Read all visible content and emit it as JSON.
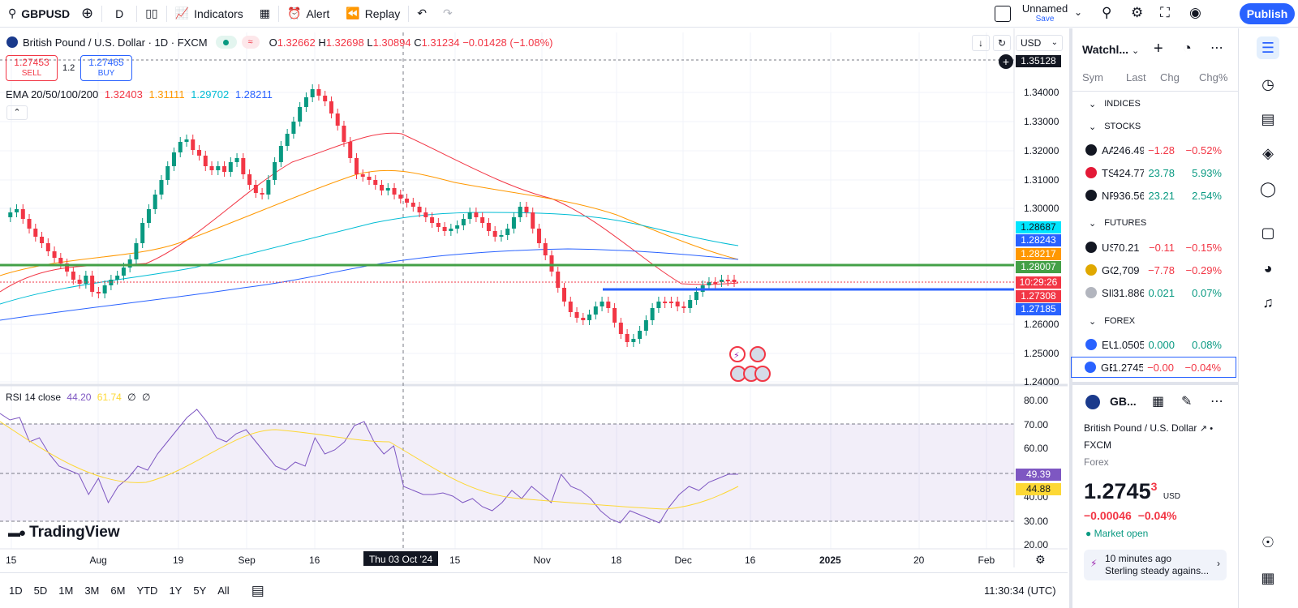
{
  "toolbar": {
    "symbol": "GBPUSD",
    "interval": "D",
    "indicators": "Indicators",
    "alert": "Alert",
    "replay": "Replay",
    "layout_name": "Unnamed",
    "save": "Save",
    "publish": "Publish"
  },
  "legend": {
    "title": "British Pound / U.S. Dollar · 1D · FXCM",
    "ohlc_o_label": "O",
    "ohlc_o": "1.32662",
    "ohlc_h_label": "H",
    "ohlc_h": "1.32698",
    "ohlc_l_label": "L",
    "ohlc_l": "1.30894",
    "ohlc_c_label": "C",
    "ohlc_c": "1.31234",
    "change": "−0.01428 (−1.08%)",
    "sell_price": "1.27453",
    "sell_label": "SELL",
    "spread": "1.2",
    "buy_price": "1.27465",
    "buy_label": "BUY",
    "ema_label": "EMA 20/50/100/200",
    "ema20": "1.32403",
    "ema50": "1.31111",
    "ema100": "1.29702",
    "ema200": "1.28211",
    "currency": "USD"
  },
  "price_axis": {
    "ticks": [
      "1.34000",
      "1.33000",
      "1.32000",
      "1.31000",
      "1.30000",
      "1.26000",
      "1.25000",
      "1.24000"
    ],
    "top_label": "1.35128",
    "labels": [
      {
        "text": "1.28687",
        "color": "#00e5ff",
        "fg": "#131722"
      },
      {
        "text": "1.28243",
        "color": "#2962ff",
        "fg": "#ffffff"
      },
      {
        "text": "1.28217",
        "color": "#ff9800",
        "fg": "#ffffff"
      },
      {
        "text": "1.28007",
        "color": "#43a047",
        "fg": "#ffffff"
      },
      {
        "text": "10:29:26",
        "color": "#f23645",
        "fg": "#ffffff"
      },
      {
        "text": "1.27308",
        "color": "#f23645",
        "fg": "#ffffff"
      },
      {
        "text": "1.27185",
        "color": "#2962ff",
        "fg": "#ffffff"
      }
    ]
  },
  "rsi": {
    "label": "RSI 14 close",
    "v1": "44.20",
    "v2": "61.74",
    "v3": "∅",
    "v4": "∅",
    "ticks": [
      "80.00",
      "70.00",
      "60.00",
      "40.00",
      "30.00",
      "20.00"
    ],
    "lbl_rsi": "49.39",
    "lbl_ma": "44.88"
  },
  "time_axis": {
    "labels": [
      "15",
      "Aug",
      "19",
      "Sep",
      "16",
      "15",
      "Nov",
      "18",
      "Dec",
      "16",
      "2025",
      "20",
      "Feb"
    ],
    "crosshair": "Thu 03 Oct '24"
  },
  "brand": "TradingView",
  "ranges": [
    "1D",
    "5D",
    "1M",
    "3M",
    "6M",
    "YTD",
    "1Y",
    "5Y",
    "All"
  ],
  "clock": "11:30:34 (UTC)",
  "watchlist": {
    "title": "Watchl...",
    "cols": [
      "Sym",
      "Last",
      "Chg",
      "Chg%"
    ],
    "sections": {
      "indices": "INDICES",
      "stocks": "STOCKS",
      "futures": "FUTURES",
      "forex": "FOREX"
    },
    "stocks": [
      {
        "sym": "AAPL",
        "last": "246.49",
        "chg": "−1.28",
        "chgp": "−0.52%",
        "dir": "dn",
        "c": "#131722"
      },
      {
        "sym": "TSLA",
        "last": "424.77",
        "chg": "23.78",
        "chgp": "5.93%",
        "dir": "up",
        "c": "#e31937"
      },
      {
        "sym": "NFLX",
        "last": "936.56",
        "chg": "23.21",
        "chgp": "2.54%",
        "dir": "up",
        "c": "#131722"
      }
    ],
    "futures": [
      {
        "sym": "USOIL",
        "last": "70.21",
        "chg": "−0.11",
        "chgp": "−0.15%",
        "dir": "dn",
        "c": "#131722"
      },
      {
        "sym": "GOLD",
        "last": "2,709",
        "chg": "−7.78",
        "chgp": "−0.29%",
        "dir": "dn",
        "c": "#e0a800"
      },
      {
        "sym": "SILVER",
        "last": "31.886",
        "chg": "0.021",
        "chgp": "0.07%",
        "dir": "up",
        "c": "#b2b5be"
      }
    ],
    "forex": [
      {
        "sym": "EURUSD",
        "last": "1.0505",
        "chg": "0.000",
        "chgp": "0.08%",
        "dir": "up",
        "c": "#2962ff"
      },
      {
        "sym": "GBPUSD",
        "last": "1.2745",
        "chg": "−0.00",
        "chgp": "−0.04%",
        "dir": "dn",
        "c": "#2962ff"
      }
    ]
  },
  "details": {
    "sym": "GB...",
    "name": "British Pound / U.S. Dollar",
    "exchange": "FXCM",
    "type": "Forex",
    "price": "1.2745",
    "price_sup": "3",
    "price_unit": "USD",
    "change": "−0.00046",
    "change_pct": "−0.04%",
    "status": "Market open",
    "news_time": "10 minutes ago",
    "news_title": "Sterling steady agains..."
  }
}
